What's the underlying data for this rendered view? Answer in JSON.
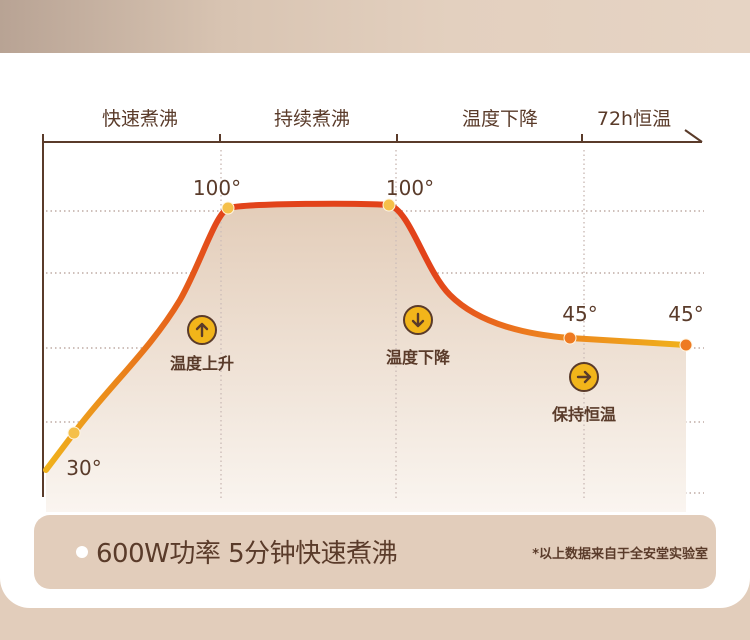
{
  "chart_data": {
    "type": "line",
    "phases": [
      "快速煮沸",
      "持续煮沸",
      "温度下降",
      "72h恒温"
    ],
    "points": [
      {
        "label": "30°",
        "temp": 30
      },
      {
        "label": "100°",
        "temp": 100
      },
      {
        "label": "100°",
        "temp": 100
      },
      {
        "label": "45°",
        "temp": 45
      },
      {
        "label": "45°",
        "temp": 45
      }
    ],
    "annotations": [
      {
        "text": "温度上升",
        "icon": "arrow-up-icon"
      },
      {
        "text": "温度下降",
        "icon": "arrow-down-icon"
      },
      {
        "text": "保持恒温",
        "icon": "arrow-right-icon"
      }
    ],
    "grid": true,
    "colors": {
      "line_start": "#f0b21c",
      "line_peak": "#e2431a",
      "axis": "#5a3b2a",
      "marker": "#f5c04a"
    }
  },
  "footer": {
    "headline": "600W功率  5分钟快速煮沸",
    "note": "*以上数据来自于全安堂实验室"
  }
}
